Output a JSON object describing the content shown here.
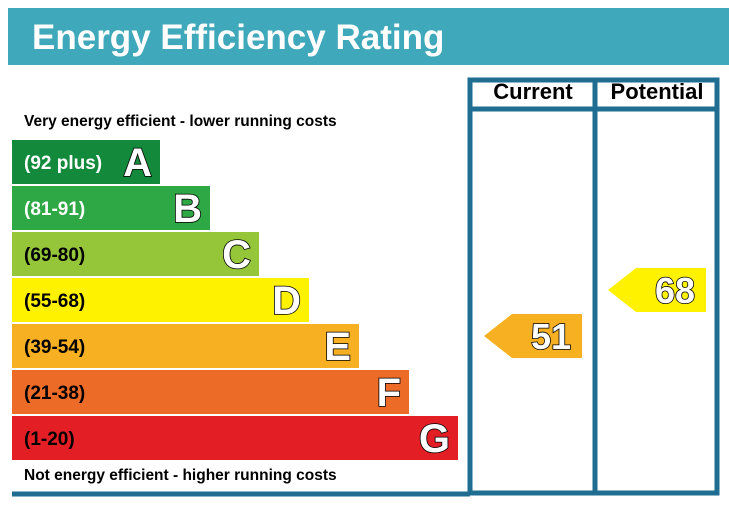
{
  "title": "Energy Efficiency Rating",
  "columns": {
    "current": "Current",
    "potential": "Potential"
  },
  "notes": {
    "top": "Very energy efficient - lower running costs",
    "bottom": "Not energy efficient - higher running costs"
  },
  "colors": {
    "title_bar": "#3fa8bb",
    "frame": "#1f6e91",
    "text_dark": "#000000",
    "text_light": "#ffffff"
  },
  "chart_data": {
    "type": "bar",
    "title": "Energy Efficiency Rating",
    "bands": [
      {
        "letter": "A",
        "range": "(92 plus)",
        "color": "#138a3b",
        "range_text_color": "#ffffff"
      },
      {
        "letter": "B",
        "range": "(81-91)",
        "color": "#2ea845",
        "range_text_color": "#ffffff"
      },
      {
        "letter": "C",
        "range": "(69-80)",
        "color": "#95c63a",
        "range_text_color": "#000000"
      },
      {
        "letter": "D",
        "range": "(55-68)",
        "color": "#fff200",
        "range_text_color": "#000000"
      },
      {
        "letter": "E",
        "range": "(39-54)",
        "color": "#f7b021",
        "range_text_color": "#000000"
      },
      {
        "letter": "F",
        "range": "(21-38)",
        "color": "#ec6b26",
        "range_text_color": "#000000"
      },
      {
        "letter": "G",
        "range": "(1-20)",
        "color": "#e31e25",
        "range_text_color": "#000000"
      }
    ],
    "ratings": {
      "current": {
        "value": 51,
        "band": "E",
        "color": "#f7b021"
      },
      "potential": {
        "value": 68,
        "band": "D",
        "color": "#fff200"
      }
    }
  }
}
